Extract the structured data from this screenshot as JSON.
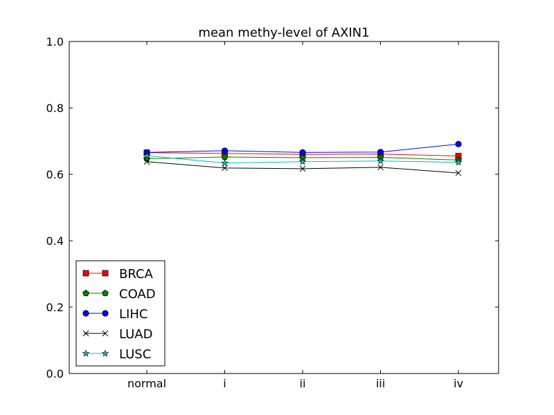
{
  "chart_data": {
    "type": "line",
    "title": "mean methy-level of AXIN1",
    "xlabel": "",
    "ylabel": "",
    "categories": [
      "normal",
      "i",
      "ii",
      "iii",
      "iv"
    ],
    "ylim": [
      0.0,
      1.0
    ],
    "yticks": [
      "0.0",
      "0.2",
      "0.4",
      "0.6",
      "0.8",
      "1.0"
    ],
    "grid": false,
    "legend_position": "lower-left",
    "series": [
      {
        "name": "BRCA",
        "color": "#ff0000",
        "marker": "square",
        "values": [
          0.665,
          0.663,
          0.66,
          0.661,
          0.655
        ]
      },
      {
        "name": "COAD",
        "color": "#008000",
        "marker": "pentagon",
        "values": [
          0.647,
          0.652,
          0.65,
          0.651,
          0.643
        ]
      },
      {
        "name": "LIHC",
        "color": "#0000ff",
        "marker": "circle",
        "values": [
          0.666,
          0.671,
          0.666,
          0.667,
          0.691
        ]
      },
      {
        "name": "LUAD",
        "color": "#000000",
        "marker": "x",
        "values": [
          0.638,
          0.619,
          0.617,
          0.621,
          0.604
        ]
      },
      {
        "name": "LUSC",
        "color": "#00bfbf",
        "marker": "star",
        "values": [
          0.656,
          0.634,
          0.638,
          0.64,
          0.636
        ]
      }
    ]
  }
}
